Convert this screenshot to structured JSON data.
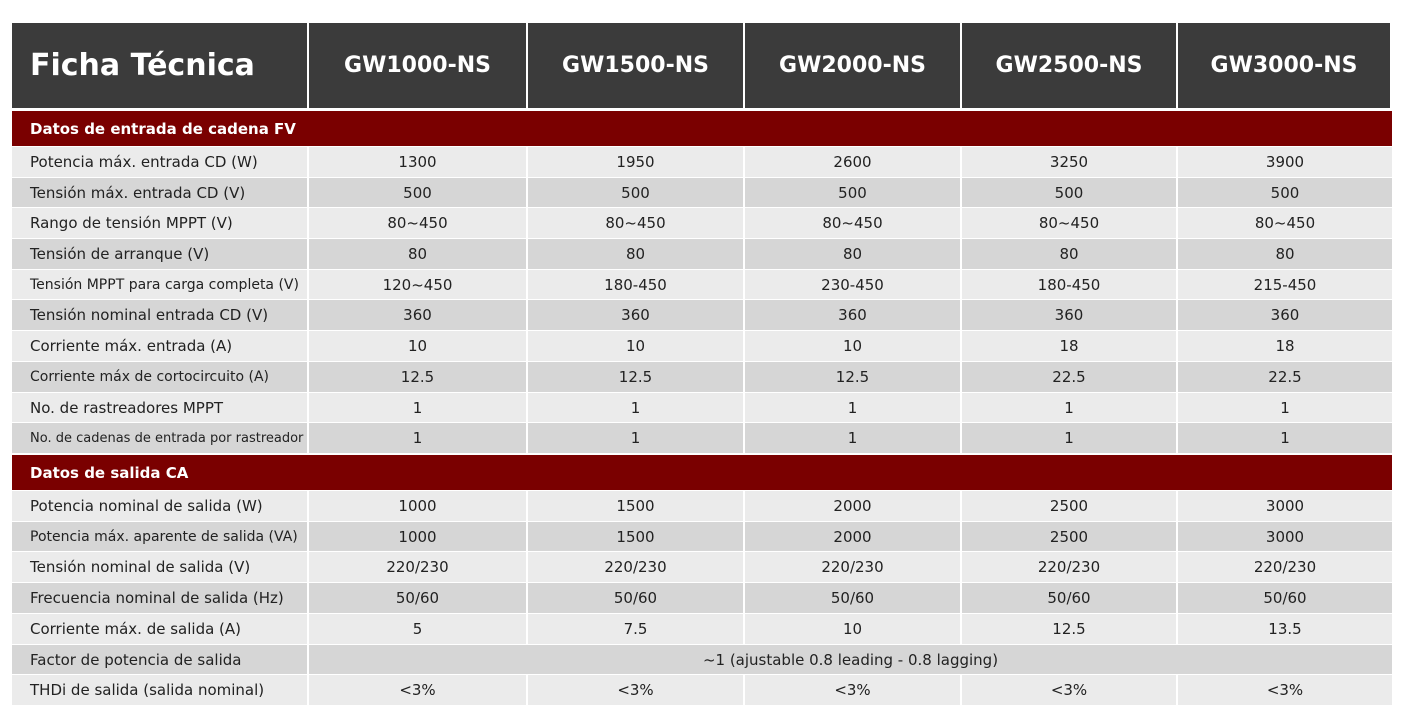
{
  "header": [
    "Ficha Técnica",
    "GW1000-NS",
    "GW1500-NS",
    "GW2000-NS",
    "GW2500-NS",
    "GW3000-NS"
  ],
  "sections": [
    {
      "title": "Datos de entrada de cadena FV",
      "rows": [
        [
          "Potencia máx. entrada CD (W)",
          "1300",
          "1950",
          "2600",
          "3250",
          "3900"
        ],
        [
          "Tensión máx. entrada CD (V)",
          "500",
          "500",
          "500",
          "500",
          "500"
        ],
        [
          "Rango de tensión MPPT (V)",
          "80~450",
          "80~450",
          "80~450",
          "80~450",
          "80~450"
        ],
        [
          "Tensión de arranque (V)",
          "80",
          "80",
          "80",
          "80",
          "80"
        ],
        [
          "Tensión MPPT para carga completa (V)",
          "120~450",
          "180-450",
          "230-450",
          "180-450",
          "215-450"
        ],
        [
          "Tensión nominal entrada CD (V)",
          "360",
          "360",
          "360",
          "360",
          "360"
        ],
        [
          "Corriente máx. entrada (A)",
          "10",
          "10",
          "10",
          "18",
          "18"
        ],
        [
          "Corriente máx de cortocircuito (A)",
          "12.5",
          "12.5",
          "12.5",
          "22.5",
          "22.5"
        ],
        [
          "No. de rastreadores MPPT",
          "1",
          "1",
          "1",
          "1",
          "1"
        ],
        [
          "No. de cadenas de entrada por rastreador",
          "1",
          "1",
          "1",
          "1",
          "1"
        ]
      ]
    },
    {
      "title": "Datos de salida CA",
      "rows": [
        [
          "Potencia nominal de salida (W)",
          "1000",
          "1500",
          "2000",
          "2500",
          "3000"
        ],
        [
          "Potencia máx. aparente de salida (VA)",
          "1000",
          "1500",
          "2000",
          "2500",
          "3000"
        ],
        [
          "Tensión nominal de salida (V)",
          "220/230",
          "220/230",
          "220/230",
          "220/230",
          "220/230"
        ],
        [
          "Frecuencia nominal de salida (Hz)",
          "50/60",
          "50/60",
          "50/60",
          "50/60",
          "50/60"
        ],
        [
          "Corriente máx. de salida (A)",
          "5",
          "7.5",
          "10",
          "12.5",
          "13.5"
        ],
        [
          "Factor de potencia de salida",
          "~1 (ajustable 0.8 leading - 0.8 lagging)"
        ],
        [
          "THDi de salida (salida nominal)",
          "<3%",
          "<3%",
          "<3%",
          "<3%",
          "<3%"
        ]
      ]
    }
  ]
}
